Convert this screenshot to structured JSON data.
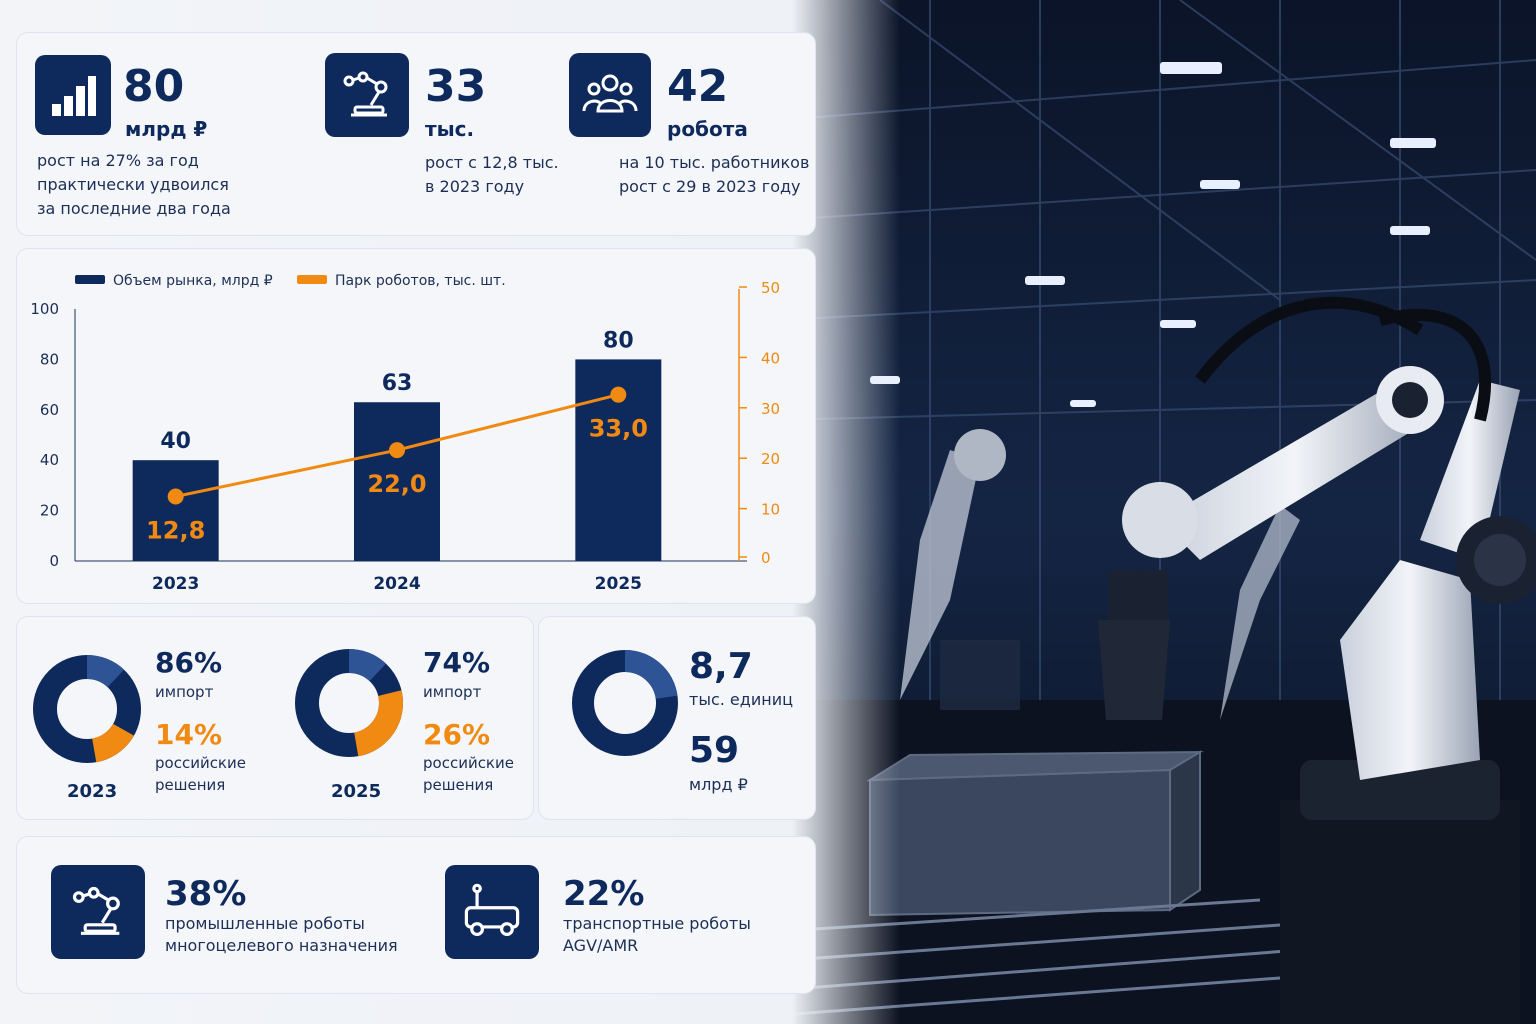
{
  "kpis": [
    {
      "value": "80",
      "unit": "млрд ₽",
      "lines": [
        "рост на 27% за год",
        "практически удвоился",
        "за последние два года"
      ],
      "icon": "bar-chart-icon"
    },
    {
      "value": "33",
      "unit": "тыс.",
      "lines": [
        "рост с 12,8 тыс.",
        "в 2023 году"
      ],
      "icon": "robot-arm-icon"
    },
    {
      "value": "42",
      "unit": "робота",
      "lines": [
        "на 10 тыс. работников",
        "рост с 29 в 2023 году"
      ],
      "icon": "people-icon"
    }
  ],
  "chart_data": {
    "type": "bar",
    "categories": [
      "2023",
      "2024",
      "2025"
    ],
    "series": [
      {
        "name": "Объем рынка, млрд ₽",
        "type": "bar",
        "values": [
          40,
          63,
          80
        ],
        "labels": [
          "40",
          "63",
          "80"
        ],
        "color": "#0e2a5c",
        "axis": "left"
      },
      {
        "name": "Парк роботов, тыс. шт.",
        "type": "line",
        "values": [
          12.8,
          22.0,
          33.0
        ],
        "labels": [
          "12,8",
          "22,0",
          "33,0"
        ],
        "color": "#f08a12",
        "axis": "right"
      }
    ],
    "y_left": {
      "range": [
        0,
        100
      ],
      "ticks": [
        "0",
        "20",
        "40",
        "60",
        "80",
        "100"
      ]
    },
    "y_right": {
      "range": [
        0,
        50
      ],
      "ticks": [
        "0",
        "10",
        "20",
        "30",
        "40",
        "50"
      ]
    },
    "legend": "top-left",
    "grid": false
  },
  "donuts": [
    {
      "year": "2023",
      "import_pct": "86%",
      "import_label": "импорт",
      "ru_pct": "14%",
      "ru_label_1": "российские",
      "ru_label_2": "решения",
      "import_value": 86,
      "ru_value": 14
    },
    {
      "year": "2025",
      "import_pct": "74%",
      "import_label": "импорт",
      "ru_pct": "26%",
      "ru_label_1": "российские",
      "ru_label_2": "решения",
      "import_value": 74,
      "ru_value": 26
    }
  ],
  "units_panel": {
    "value1": "8,7",
    "label1": "тыс. единиц",
    "value2": "59",
    "label2": "млрд ₽"
  },
  "bottom": [
    {
      "pct": "38%",
      "line1": "промышленные роботы",
      "line2": "многоцелевого назначения",
      "icon": "robot-arm-icon"
    },
    {
      "pct": "22%",
      "line1": "транспортные роботы",
      "line2": "AGV/AMR",
      "icon": "agv-vehicle-icon"
    }
  ],
  "colors": {
    "navy": "#0e2a5c",
    "orange": "#f08a12",
    "light_blue": "#2f5496"
  }
}
